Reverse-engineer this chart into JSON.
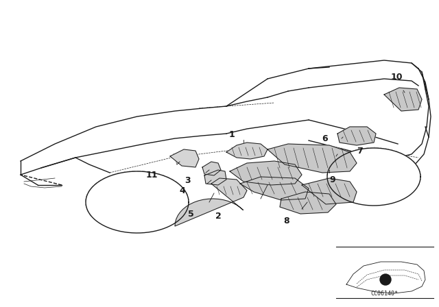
{
  "bg_color": "#ffffff",
  "line_color": "#1a1a1a",
  "diagram_code": "CC06140*",
  "lw_main": 1.0,
  "lw_thin": 0.5,
  "lw_part": 0.7
}
